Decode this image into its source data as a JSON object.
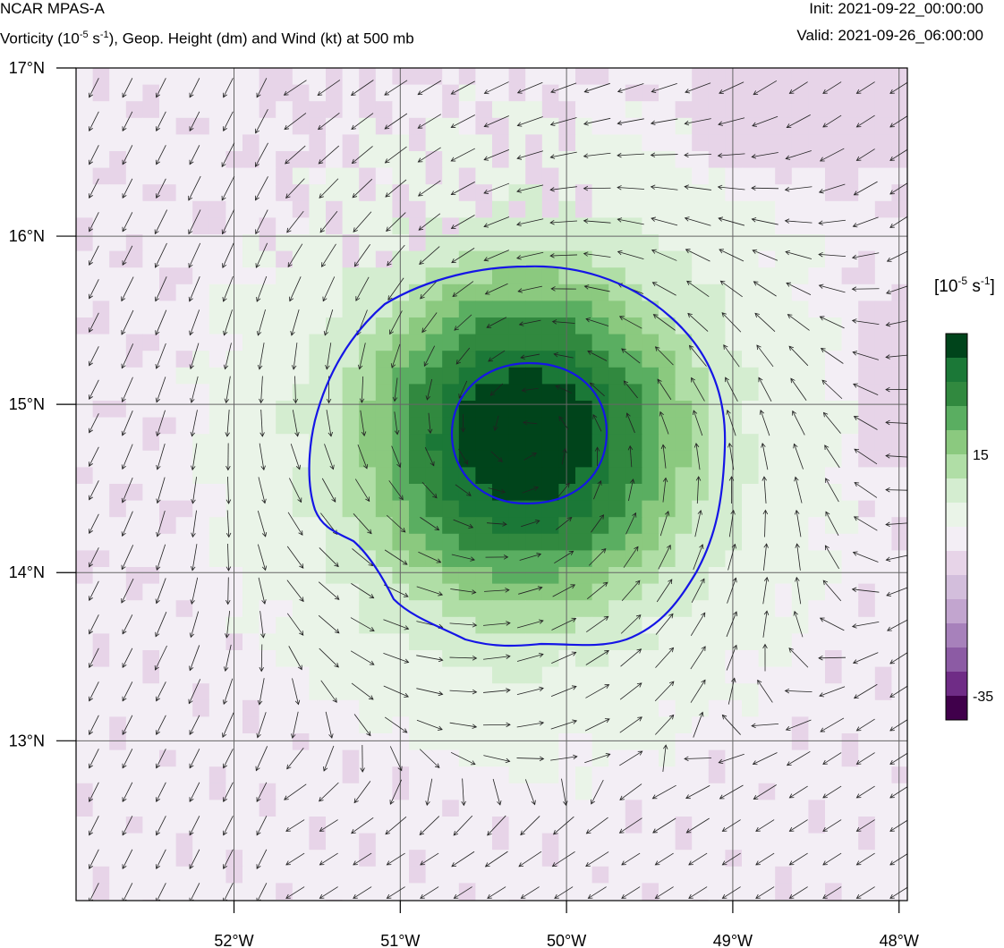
{
  "header": {
    "model": "NCAR MPAS-A",
    "field_prefix": "Vorticity (10",
    "field_exp": "-5",
    "field_mid": " s",
    "field_exp2": "-1",
    "field_suffix": "), Geop. Height (dm) and Wind (kt) at 500 mb",
    "init": "Init: 2021-09-22_00:00:00",
    "valid": "Valid: 2021-09-26_06:00:00"
  },
  "map": {
    "lon_range": [
      -52.95,
      -47.95
    ],
    "lat_range": [
      12.05,
      17.0
    ],
    "lon_ticks": [
      {
        "value": -52,
        "label": "52°W"
      },
      {
        "value": -51,
        "label": "51°W"
      },
      {
        "value": -50,
        "label": "50°W"
      },
      {
        "value": -49,
        "label": "49°W"
      },
      {
        "value": -48,
        "label": "48°W"
      }
    ],
    "lat_ticks": [
      {
        "value": 17,
        "label": "17°N"
      },
      {
        "value": 16,
        "label": "16°N"
      },
      {
        "value": 15,
        "label": "15°N"
      },
      {
        "value": 14,
        "label": "14°N"
      },
      {
        "value": 13,
        "label": "13°N"
      }
    ],
    "vortex_center": {
      "lon": -50.25,
      "lat": 14.8
    },
    "geop_height_contours_color": "#1515e6",
    "grid_color": "#666666"
  },
  "colorbar": {
    "unit_prefix": "[10",
    "unit_exp": "-5",
    "unit_mid": " s",
    "unit_exp2": "-1",
    "unit_suffix": "]",
    "labels": [
      {
        "index": 5,
        "text": "15"
      },
      {
        "index": 15,
        "text": "-35"
      }
    ],
    "colors": [
      "#00441b",
      "#1b7837",
      "#31893f",
      "#5aae61",
      "#8bc97f",
      "#b0dea6",
      "#d4edd0",
      "#eaf4e8",
      "#f3eef5",
      "#e7d4e8",
      "#d3bedc",
      "#c2a5cf",
      "#a781bb",
      "#8c5ba4",
      "#6f2c86",
      "#40004b"
    ]
  }
}
